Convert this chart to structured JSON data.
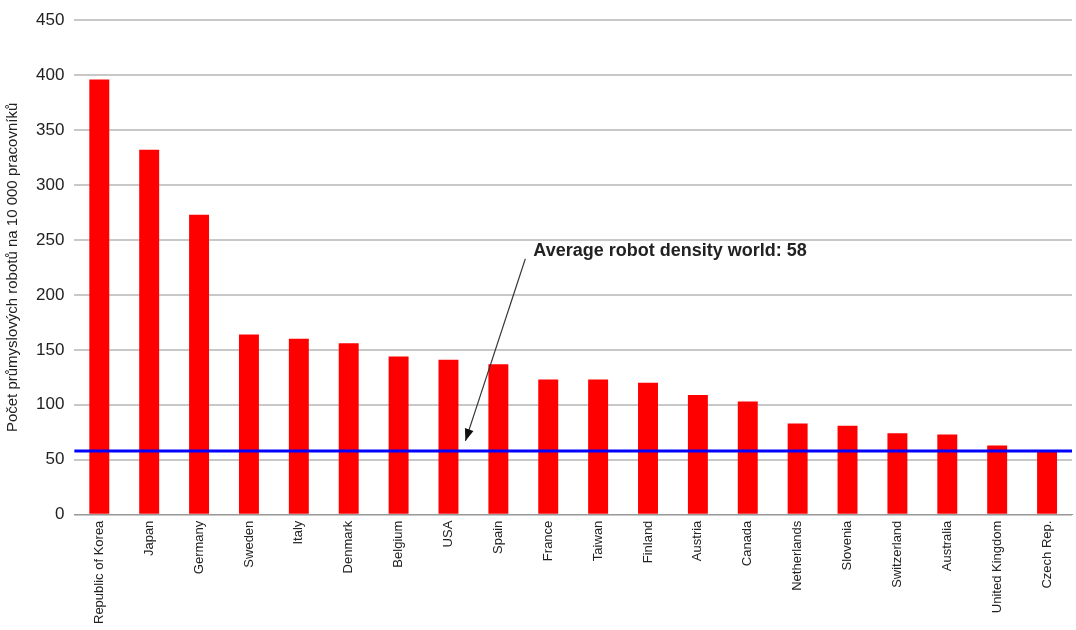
{
  "chart_data": {
    "type": "bar",
    "ylabel": "Počet průmyslových robotů na 10 000 pracovníků",
    "categories": [
      "Republic of Korea",
      "Japan",
      "Germany",
      "Sweden",
      "Italy",
      "Denmark",
      "Belgium",
      "USA",
      "Spain",
      "France",
      "Taiwan",
      "Finland",
      "Austria",
      "Canada",
      "Netherlands",
      "Slovenia",
      "Switzerland",
      "Australia",
      "United Kingdom",
      "Czech Rep."
    ],
    "values": [
      396,
      332,
      273,
      164,
      160,
      156,
      144,
      141,
      137,
      123,
      123,
      120,
      109,
      103,
      83,
      81,
      74,
      73,
      63,
      58
    ],
    "color": "#ff0000",
    "ylim": [
      0,
      450
    ],
    "yticks": [
      0,
      50,
      100,
      150,
      200,
      250,
      300,
      350,
      400,
      450
    ],
    "grid": "y",
    "legend": false,
    "ref_lines": [
      {
        "axis": "y",
        "value": 58,
        "label": "Average robot density world: 58",
        "color": "#0000ff"
      }
    ]
  }
}
